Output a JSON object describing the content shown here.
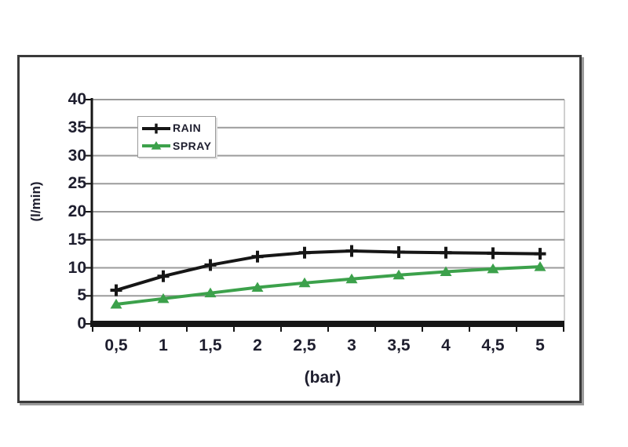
{
  "window": {
    "background": "#ffffff"
  },
  "chart_data": {
    "type": "line",
    "title": "",
    "xlabel": "(bar)",
    "ylabel": "(l/min)",
    "x": [
      0.5,
      1,
      1.5,
      2,
      2.5,
      3,
      3.5,
      4,
      4.5,
      5
    ],
    "xtick_labels": [
      "0,5",
      "1",
      "1,5",
      "2",
      "2,5",
      "3",
      "3,5",
      "4",
      "4,5",
      "5"
    ],
    "ylim": [
      0,
      40
    ],
    "ytick_step": 5,
    "ytick_labels": [
      "0",
      "5",
      "10",
      "15",
      "20",
      "25",
      "30",
      "35",
      "40"
    ],
    "grid": "horizontal-only",
    "legend_position": "upper-left-inside",
    "series": [
      {
        "name": "RAIN",
        "color": "#161616",
        "marker": "plus",
        "values": [
          6,
          8.5,
          10.5,
          12,
          12.7,
          13,
          12.8,
          12.7,
          12.6,
          12.5
        ]
      },
      {
        "name": "SPRAY",
        "color": "#3ca14b",
        "marker": "triangle-up",
        "values": [
          3.5,
          4.5,
          5.5,
          6.5,
          7.3,
          8,
          8.7,
          9.3,
          9.8,
          10.2
        ]
      }
    ]
  },
  "colors": {
    "grid": "#9b9b9b",
    "axis": "#161616",
    "text": "#1e1e2e",
    "frame_border": "#3a3a3a",
    "frame_shadow": "#9b9b9b",
    "legend_border": "#9a9a9a",
    "plot_right_edge": "#cfcfcf"
  }
}
